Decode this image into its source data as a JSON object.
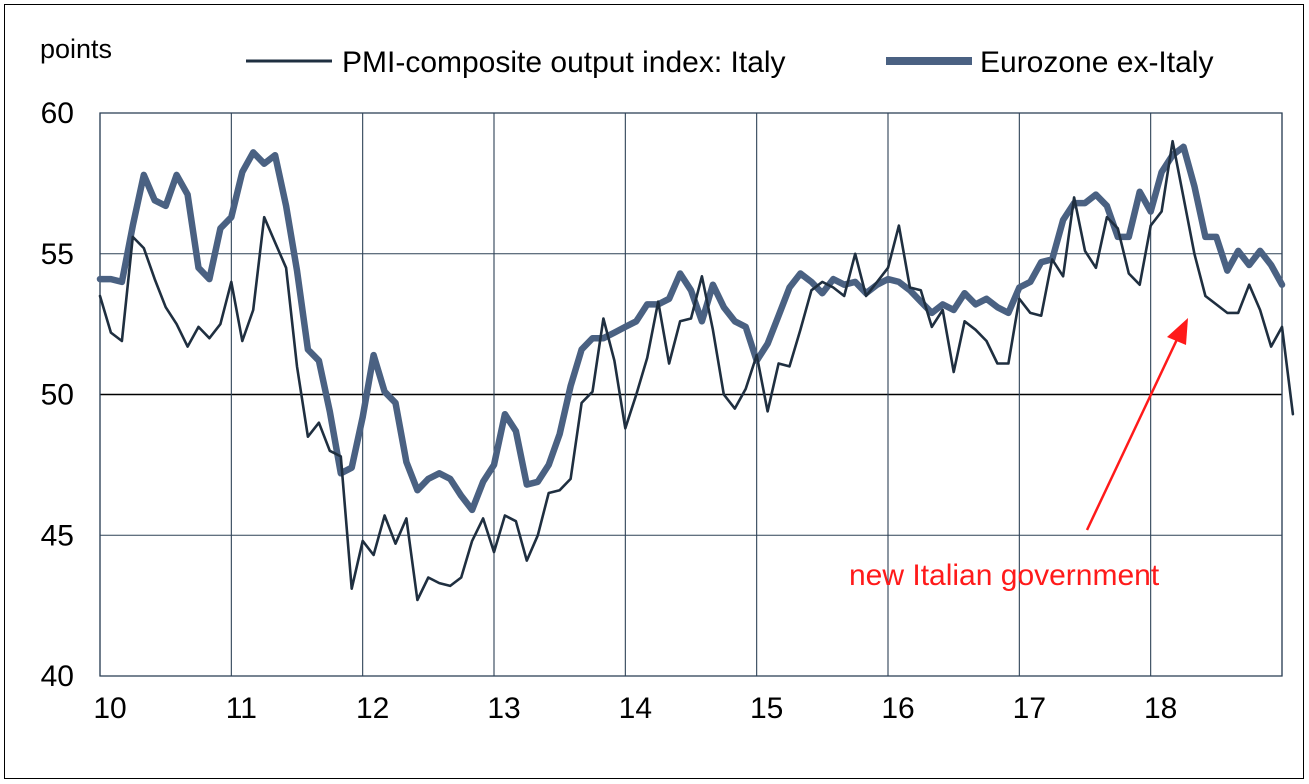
{
  "chart_data": {
    "type": "line",
    "ylabel": "points",
    "ylim": [
      40,
      60
    ],
    "yticks": [
      40,
      45,
      50,
      55,
      60
    ],
    "xlim": [
      2010,
      2019
    ],
    "xticks": [
      "10",
      "11",
      "12",
      "13",
      "14",
      "15",
      "16",
      "17",
      "18"
    ],
    "x_start": 2010,
    "x_step_months": 1,
    "grid": true,
    "legend_position": "top",
    "reference_line": 50,
    "series": [
      {
        "name": "PMI-composite output index: Italy",
        "color": "#1f2f40",
        "values": [
          53.5,
          52.2,
          51.9,
          55.6,
          55.2,
          54.1,
          53.1,
          52.5,
          51.7,
          52.4,
          52.0,
          52.5,
          54.0,
          51.9,
          53.0,
          56.3,
          55.4,
          54.5,
          51.0,
          48.5,
          49.0,
          48.0,
          47.8,
          43.1,
          44.8,
          44.3,
          45.7,
          44.7,
          45.6,
          42.7,
          43.5,
          43.3,
          43.2,
          43.5,
          44.8,
          45.6,
          44.4,
          45.7,
          45.5,
          44.1,
          45.0,
          46.5,
          46.6,
          47.0,
          49.7,
          50.1,
          52.7,
          51.2,
          48.8,
          50.0,
          51.3,
          53.3,
          51.1,
          52.6,
          52.7,
          54.2,
          52.3,
          50.0,
          49.5,
          50.2,
          51.4,
          49.4,
          51.1,
          51.0,
          52.3,
          53.7,
          54.0,
          53.8,
          53.5,
          55.0,
          53.5,
          54.0,
          54.5,
          56.0,
          53.8,
          53.7,
          52.4,
          53.0,
          50.8,
          52.6,
          52.3,
          51.9,
          51.1,
          51.1,
          53.4,
          52.9,
          52.8,
          54.8,
          54.2,
          57.0,
          55.1,
          54.5,
          56.3,
          55.9,
          54.3,
          53.9,
          56.0,
          56.5,
          59.0,
          57.0,
          55.0,
          53.5,
          53.2,
          52.9,
          52.9,
          53.9,
          53.0,
          51.7,
          52.4,
          49.3
        ]
      },
      {
        "name": "Eurozone ex-Italy",
        "color": "#4a6182",
        "values": [
          54.1,
          54.1,
          54.0,
          56.0,
          57.8,
          56.9,
          56.7,
          57.8,
          57.1,
          54.5,
          54.1,
          55.9,
          56.3,
          57.9,
          58.6,
          58.2,
          58.5,
          56.7,
          54.4,
          51.6,
          51.2,
          49.4,
          47.2,
          47.4,
          49.2,
          51.4,
          50.1,
          49.7,
          47.6,
          46.6,
          47.0,
          47.2,
          47.0,
          46.4,
          45.9,
          46.9,
          47.5,
          49.3,
          48.7,
          46.8,
          46.9,
          47.5,
          48.6,
          50.3,
          51.6,
          52.0,
          52.0,
          52.2,
          52.4,
          52.6,
          53.2,
          53.2,
          53.4,
          54.3,
          53.7,
          52.6,
          53.9,
          53.1,
          52.6,
          52.4,
          51.2,
          51.8,
          52.8,
          53.8,
          54.3,
          54.0,
          53.6,
          54.1,
          53.9,
          54.0,
          53.6,
          53.9,
          54.1,
          54.0,
          53.7,
          53.3,
          52.9,
          53.2,
          53.0,
          53.6,
          53.2,
          53.4,
          53.1,
          52.9,
          53.8,
          54.0,
          54.7,
          54.8,
          56.2,
          56.8,
          56.8,
          57.1,
          56.7,
          55.6,
          55.6,
          57.2,
          56.5,
          57.9,
          58.5,
          58.8,
          57.4,
          55.6,
          55.6,
          54.4,
          55.1,
          54.6,
          55.1,
          54.6,
          53.9
        ]
      }
    ],
    "annotation": {
      "text": "new Italian government",
      "color": "#ff1a1a"
    }
  }
}
